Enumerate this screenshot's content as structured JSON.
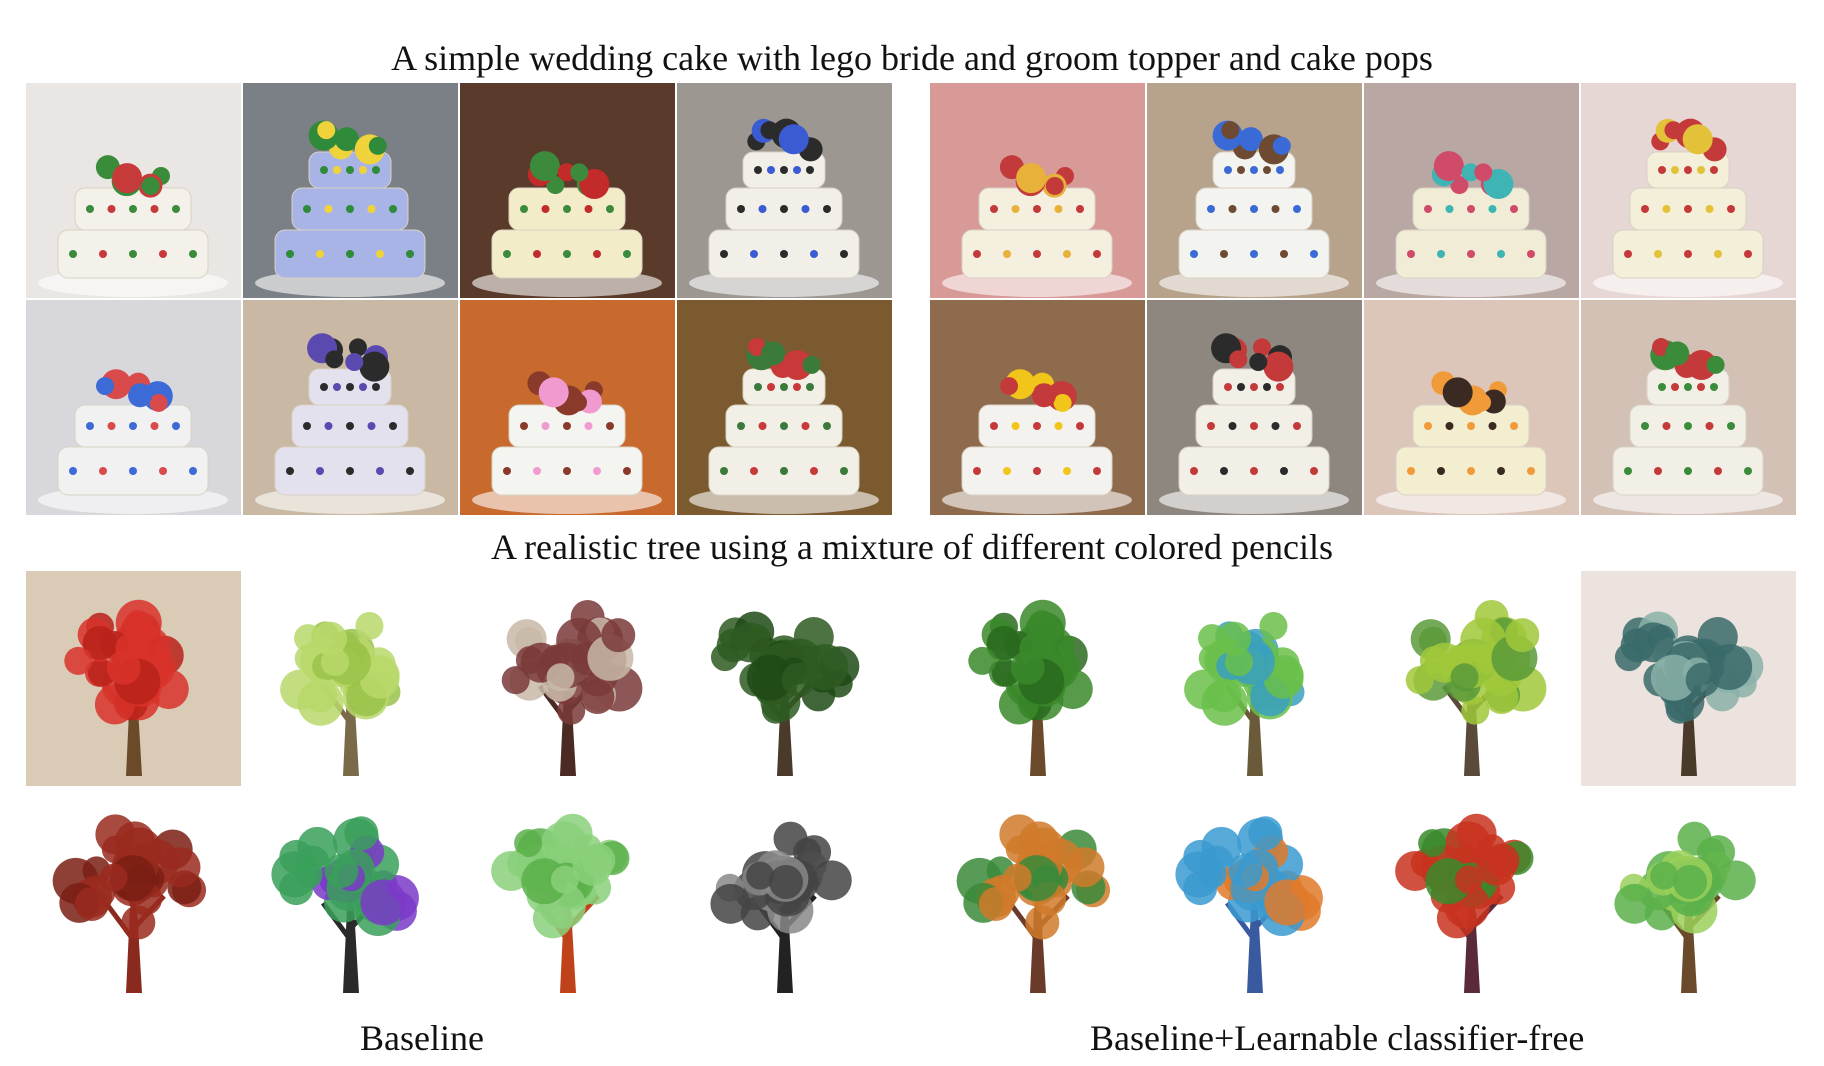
{
  "figure": {
    "caption_top": "A simple wedding cake with lego bride and groom topper and cake pops",
    "caption_middle": "A realistic tree using a mixture of different colored pencils",
    "label_left": "Baseline",
    "label_right": "Baseline+Learnable classifier-free"
  },
  "panels": {
    "cake_left": [
      {
        "bg": "#e9e6e3",
        "body": "#f4f1ea",
        "deco": "#c73a3a",
        "accent": "#3a8c3a"
      },
      {
        "bg": "#7b7f86",
        "body": "#a9b4e6",
        "deco": "#f0d33a",
        "accent": "#2f8a3a"
      },
      {
        "bg": "#5a3a2a",
        "body": "#f3ecc9",
        "deco": "#c32b2b",
        "accent": "#3c8a3c"
      },
      {
        "bg": "#9c9791",
        "body": "#f2efe8",
        "deco": "#3a5bd1",
        "accent": "#2b2b2b"
      },
      {
        "bg": "#d8d8dc",
        "body": "#f1f1f1",
        "deco": "#d94b4b",
        "accent": "#3c6ad6"
      },
      {
        "bg": "#c9b8a4",
        "body": "#e4e1ef",
        "deco": "#5a4ab0",
        "accent": "#2b2b2b"
      },
      {
        "bg": "#c86a2e",
        "body": "#f4f4f1",
        "deco": "#f19ad0",
        "accent": "#8a3a2a"
      },
      {
        "bg": "#7a5a2e",
        "body": "#f2efe6",
        "deco": "#c83a3a",
        "accent": "#3a7a3a"
      }
    ],
    "cake_right": [
      {
        "bg": "#d79a96",
        "body": "#f5efe0",
        "deco": "#e8b13a",
        "accent": "#c23a3a"
      },
      {
        "bg": "#b7a28c",
        "body": "#f3f3f0",
        "deco": "#6e4a32",
        "accent": "#3a6ad6"
      },
      {
        "bg": "#b9a7a3",
        "body": "#f1ecd5",
        "deco": "#3fb4b4",
        "accent": "#d04a6a"
      },
      {
        "bg": "#e6d6d4",
        "body": "#f4efd9",
        "deco": "#e3c23a",
        "accent": "#c43a3a"
      },
      {
        "bg": "#8f6b4e",
        "body": "#f4f2ee",
        "deco": "#f2c51a",
        "accent": "#c43a3a"
      },
      {
        "bg": "#8e877f",
        "body": "#f2efe7",
        "deco": "#2b2b2b",
        "accent": "#c43a3a"
      },
      {
        "bg": "#dcc6b9",
        "body": "#f3eecf",
        "deco": "#3a2a22",
        "accent": "#f09a3a"
      },
      {
        "bg": "#d4c1b6",
        "body": "#f2efe6",
        "deco": "#c43a3a",
        "accent": "#3a8c3a"
      }
    ],
    "tree_left": [
      {
        "bg": "#d9cbb6",
        "trunk": "#6b4a2a",
        "leaf": "#d8322a",
        "leaf2": "#b8221a"
      },
      {
        "bg": "#ffffff",
        "trunk": "#7a6a4a",
        "leaf": "#b8d86a",
        "leaf2": "#9ac24a"
      },
      {
        "bg": "#ffffff",
        "trunk": "#4a2a22",
        "leaf": "#7a3a3a",
        "leaf2": "#c8b8a8"
      },
      {
        "bg": "#ffffff",
        "trunk": "#4a3a2a",
        "leaf": "#2e5a22",
        "leaf2": "#1e4a16"
      },
      {
        "bg": "#ffffff",
        "trunk": "#8a2a1e",
        "leaf": "#9a2a1e",
        "leaf2": "#7a1e14"
      },
      {
        "bg": "#ffffff",
        "trunk": "#2a2a2a",
        "leaf": "#3aa05a",
        "leaf2": "#7a3ac8"
      },
      {
        "bg": "#ffffff",
        "trunk": "#c0421a",
        "leaf": "#8ad07a",
        "leaf2": "#5ab04a"
      },
      {
        "bg": "#ffffff",
        "trunk": "#222222",
        "leaf": "#444444",
        "leaf2": "#888888"
      }
    ],
    "tree_right": [
      {
        "bg": "#ffffff",
        "trunk": "#6a4a2a",
        "leaf": "#3a8a2a",
        "leaf2": "#2a6a1e"
      },
      {
        "bg": "#ffffff",
        "trunk": "#6a5a3a",
        "leaf": "#6ac04a",
        "leaf2": "#3aa0c0"
      },
      {
        "bg": "#ffffff",
        "trunk": "#5a4a3a",
        "leaf": "#a0c83a",
        "leaf2": "#5a9a3a"
      },
      {
        "bg": "#ece2de",
        "trunk": "#4a3a2a",
        "leaf": "#3a6a6a",
        "leaf2": "#8ab0a8"
      },
      {
        "bg": "#ffffff",
        "trunk": "#6a3a2a",
        "leaf": "#d07a2a",
        "leaf2": "#3a8a3a"
      },
      {
        "bg": "#ffffff",
        "trunk": "#3a5aa0",
        "leaf": "#3a9ad0",
        "leaf2": "#e07a2a"
      },
      {
        "bg": "#ffffff",
        "trunk": "#5a2a3a",
        "leaf": "#c8321e",
        "leaf2": "#3a8a2a"
      },
      {
        "bg": "#ffffff",
        "trunk": "#6a4a2a",
        "leaf": "#5ab04a",
        "leaf2": "#9ad05a"
      }
    ]
  }
}
